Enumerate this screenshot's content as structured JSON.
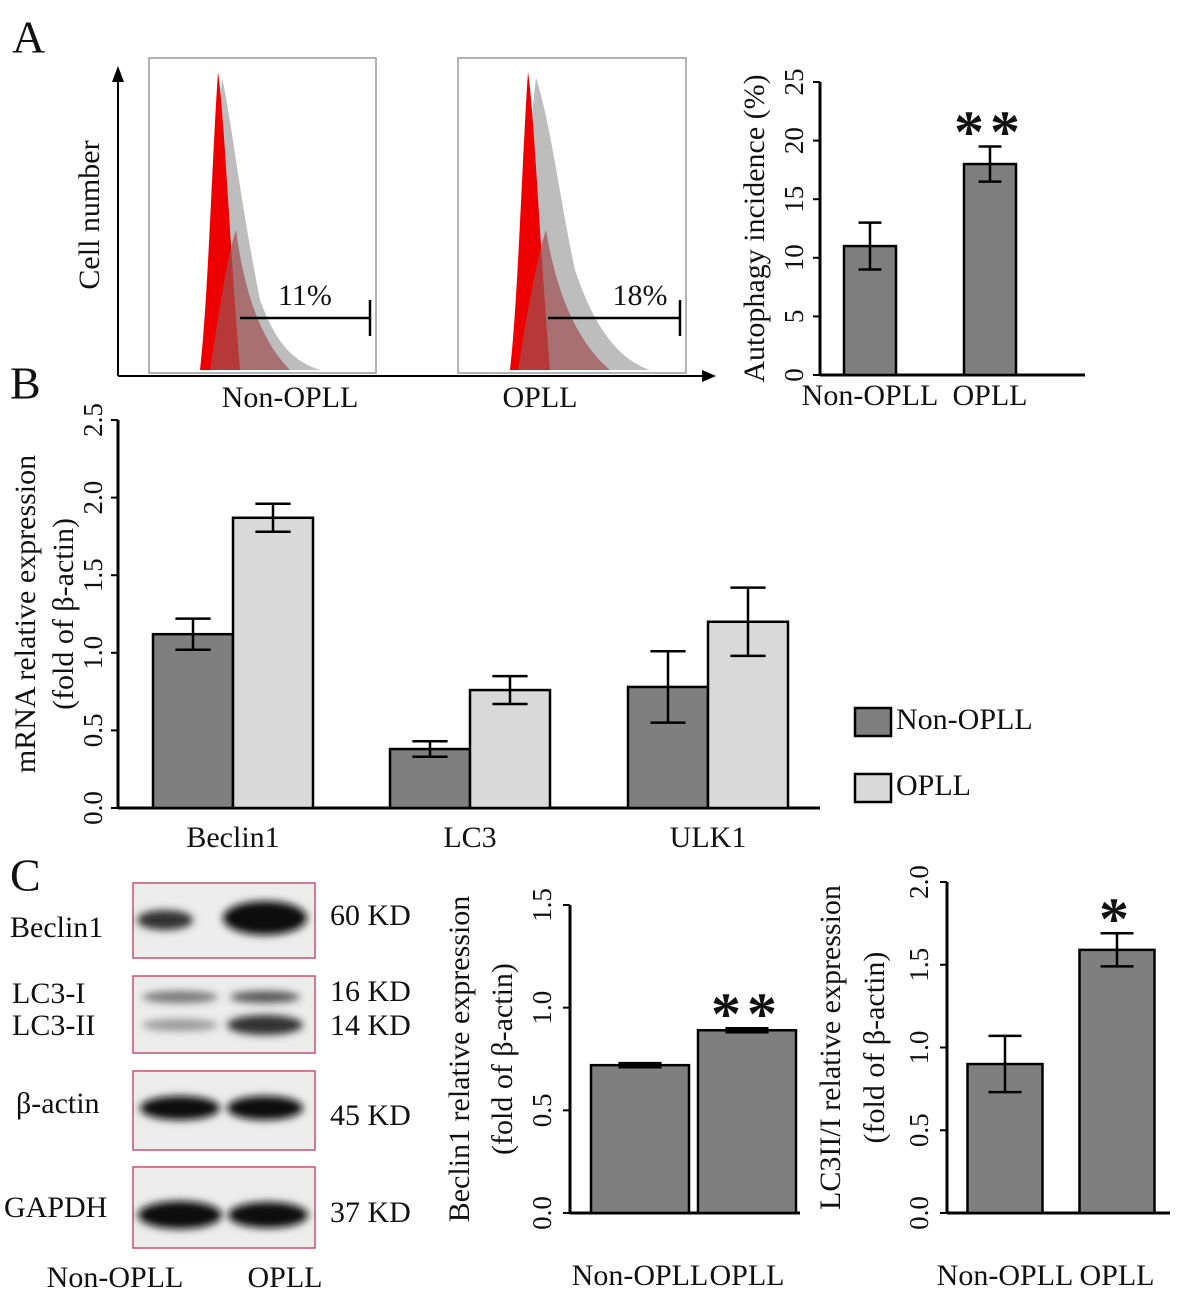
{
  "panel_labels": [
    "A",
    "B",
    "C"
  ],
  "flow": {
    "y_label": "Cell number",
    "panels": [
      {
        "label": "Non-OPLL",
        "gate": "11%"
      },
      {
        "label": "OPLL",
        "gate": "18%"
      }
    ]
  },
  "blot": {
    "rows": [
      {
        "labels": [
          "Beclin1"
        ],
        "sizes": [
          "60 KD"
        ]
      },
      {
        "labels": [
          "LC3-I",
          "LC3-II"
        ],
        "sizes": [
          "16 KD",
          "14 KD"
        ]
      },
      {
        "labels": [
          "β-actin"
        ],
        "sizes": [
          "45 KD"
        ]
      },
      {
        "labels": [
          "GAPDH"
        ],
        "sizes": [
          "37 KD"
        ]
      }
    ],
    "lanes": [
      "Non-OPLL",
      "OPLL"
    ]
  },
  "chart_data": [
    {
      "type": "bar",
      "ylabel": [
        "Autophagy incidence (%)"
      ],
      "categories": [
        "Non-OPLL",
        "OPLL"
      ],
      "values": [
        11,
        18
      ],
      "errors": [
        2,
        1.5
      ],
      "significance": [
        null,
        "**"
      ],
      "color": "#7f7f7f",
      "ylim": [
        0,
        25
      ],
      "yticks": [
        0,
        5,
        10,
        15,
        20,
        25
      ]
    },
    {
      "type": "bar",
      "ylabel": [
        "mRNA relative expression",
        "(fold of β-actin)"
      ],
      "categories": [
        "Beclin1",
        "LC3",
        "ULK1"
      ],
      "series": [
        {
          "name": "Non-OPLL",
          "color": "#7f7f7f",
          "values": [
            1.12,
            0.38,
            0.78
          ],
          "errors": [
            0.1,
            0.05,
            0.23
          ]
        },
        {
          "name": "OPLL",
          "color": "#d9d9d9",
          "values": [
            1.87,
            0.76,
            1.2
          ],
          "errors": [
            0.09,
            0.09,
            0.22
          ]
        }
      ],
      "ylim": [
        0,
        2.5
      ],
      "yticks": [
        {
          "value": 0,
          "label": "0.0"
        },
        0.5,
        {
          "value": 1,
          "label": "1.0"
        },
        1.5,
        {
          "value": 2,
          "label": "2.0"
        },
        2.5
      ]
    },
    {
      "type": "bar",
      "ylabel": [
        "Beclin1 relative expression",
        "(fold of β-actin)"
      ],
      "categories": [
        "Non-OPLL",
        "OPLL"
      ],
      "values": [
        0.72,
        0.89
      ],
      "errors": [
        0.01,
        0.01
      ],
      "significance": [
        null,
        "**"
      ],
      "color": "#7f7f7f",
      "ylim": [
        0,
        1.5
      ],
      "yticks": [
        {
          "value": 0,
          "label": "0.0"
        },
        0.5,
        {
          "value": 1,
          "label": "1.0"
        },
        1.5
      ]
    },
    {
      "type": "bar",
      "ylabel": [
        "LC3II/I relative expression",
        "(fold of β-actin)"
      ],
      "categories": [
        "Non-OPLL",
        "OPLL"
      ],
      "values": [
        0.9,
        1.59
      ],
      "errors": [
        0.17,
        0.1
      ],
      "significance": [
        null,
        "*"
      ],
      "color": "#7f7f7f",
      "ylim": [
        0,
        2
      ],
      "yticks": [
        {
          "value": 0,
          "label": "0.0"
        },
        0.5,
        {
          "value": 1,
          "label": "1.0"
        },
        1.5,
        {
          "value": 2,
          "label": "2.0"
        }
      ]
    }
  ]
}
